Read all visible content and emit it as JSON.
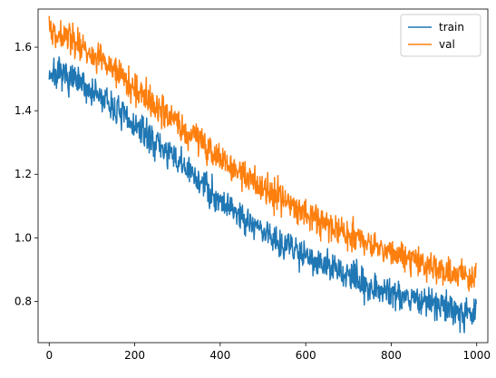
{
  "chart_data": {
    "type": "line",
    "title": "",
    "xlabel": "",
    "ylabel": "",
    "xlim": [
      -26,
      1026
    ],
    "ylim": [
      0.67,
      1.72
    ],
    "grid": false,
    "legend_placement": "top-right",
    "xticks": [
      0,
      200,
      400,
      600,
      800,
      1000
    ],
    "yticks": [
      0.8,
      1.0,
      1.2,
      1.4,
      1.6
    ],
    "x_tick_labels": [
      "0",
      "200",
      "400",
      "600",
      "800",
      "1000"
    ],
    "y_tick_labels": [
      "0.8",
      "1.0",
      "1.2",
      "1.4",
      "1.6"
    ],
    "noise_seed": 7,
    "series": [
      {
        "name": "train",
        "color": "#1f77b4",
        "x": [
          0,
          50,
          100,
          150,
          200,
          250,
          300,
          350,
          400,
          450,
          500,
          550,
          600,
          650,
          700,
          750,
          800,
          850,
          900,
          950,
          1000
        ],
        "values": [
          1.52,
          1.5,
          1.46,
          1.41,
          1.35,
          1.3,
          1.24,
          1.18,
          1.12,
          1.07,
          1.02,
          0.98,
          0.95,
          0.91,
          0.88,
          0.85,
          0.83,
          0.81,
          0.79,
          0.775,
          0.76
        ],
        "noise_amplitude": 0.035,
        "n_points": 1000
      },
      {
        "name": "val",
        "color": "#ff7f0e",
        "x": [
          0,
          50,
          100,
          150,
          200,
          250,
          300,
          350,
          400,
          450,
          500,
          550,
          600,
          650,
          700,
          750,
          800,
          850,
          900,
          950,
          1000
        ],
        "values": [
          1.65,
          1.63,
          1.58,
          1.53,
          1.47,
          1.42,
          1.36,
          1.31,
          1.25,
          1.2,
          1.16,
          1.12,
          1.08,
          1.04,
          1.01,
          0.98,
          0.95,
          0.93,
          0.91,
          0.89,
          0.88
        ],
        "noise_amplitude": 0.035,
        "n_points": 1000
      }
    ]
  }
}
